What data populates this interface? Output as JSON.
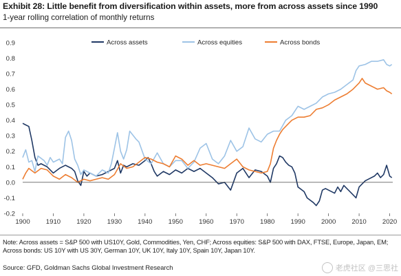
{
  "title": "Exhibit 28: Little benefit from diversification within assets, more from across assets since 1990",
  "subtitle": "1-year rolling correlation of monthly returns",
  "note": "Note: Across assets = S&P 500 with US10Y, Gold, Commodities, Yen, CHF; Across equities: S&P 500 with DAX, FTSE, Europe, Japan, EM; Across bonds: US 10Y with US 30Y, German 10Y, UK 10Y, Italy 10Y, Spain 10Y, Japan 10Y.",
  "source": "Source: GFD, Goldman Sachs Global Investment Research",
  "watermark": {
    "icon": "tiger-logo-icon",
    "text": "老虎社区 @三思社"
  },
  "chart_data": {
    "type": "line",
    "title": "",
    "xlabel": "",
    "ylabel": "",
    "xlim": [
      1900,
      2021
    ],
    "ylim": [
      -0.2,
      0.9
    ],
    "xticks": [
      1900,
      1910,
      1920,
      1930,
      1940,
      1950,
      1960,
      1970,
      1980,
      1990,
      2000,
      2010,
      2020
    ],
    "yticks": [
      -0.2,
      -0.1,
      0.0,
      0.1,
      0.2,
      0.3,
      0.4,
      0.5,
      0.6,
      0.7,
      0.8,
      0.9
    ],
    "ytick_labels": [
      "-0.2",
      "-0.1",
      "0.0",
      "0.1",
      "0.2",
      "0.3",
      "0.4",
      "0.5",
      "0.6",
      "0.7",
      "0.8",
      "0.9"
    ],
    "grid": false,
    "legend_position": "top",
    "series": [
      {
        "name": "Across assets",
        "color": "#1f3864",
        "x": [
          1900,
          1901,
          1902,
          1903,
          1904,
          1905,
          1906,
          1908,
          1910,
          1912,
          1914,
          1916,
          1917,
          1918,
          1919,
          1920,
          1921,
          1922,
          1924,
          1926,
          1928,
          1930,
          1931,
          1932,
          1933,
          1934,
          1936,
          1938,
          1940,
          1941,
          1942,
          1943,
          1944,
          1946,
          1948,
          1950,
          1952,
          1954,
          1956,
          1958,
          1960,
          1962,
          1964,
          1966,
          1968,
          1970,
          1972,
          1974,
          1976,
          1978,
          1980,
          1981,
          1982,
          1983,
          1984,
          1985,
          1986,
          1987,
          1988,
          1989,
          1990,
          1992,
          1993,
          1995,
          1996,
          1997,
          1998,
          1999,
          2000,
          2002,
          2003,
          2004,
          2005,
          2006,
          2008,
          2009,
          2010,
          2011,
          2012,
          2013,
          2015,
          2016,
          2017,
          2018,
          2019,
          2020,
          2020.7
        ],
        "y": [
          0.38,
          0.37,
          0.36,
          0.27,
          0.16,
          0.11,
          0.12,
          0.1,
          0.06,
          0.09,
          0.11,
          0.09,
          0.07,
          0.01,
          -0.02,
          0.07,
          0.04,
          0.06,
          0.04,
          0.05,
          0.07,
          0.09,
          0.14,
          0.06,
          0.11,
          0.1,
          0.12,
          0.11,
          0.14,
          0.16,
          0.12,
          0.07,
          0.04,
          0.07,
          0.05,
          0.08,
          0.06,
          0.09,
          0.07,
          0.09,
          0.06,
          0.03,
          -0.01,
          0.0,
          -0.05,
          0.06,
          0.09,
          0.03,
          0.08,
          0.07,
          0.04,
          0.0,
          0.09,
          0.12,
          0.17,
          0.16,
          0.13,
          0.11,
          0.1,
          0.06,
          -0.03,
          -0.06,
          -0.1,
          -0.13,
          -0.15,
          -0.12,
          -0.05,
          -0.04,
          -0.05,
          -0.07,
          -0.03,
          -0.06,
          -0.02,
          -0.04,
          -0.08,
          -0.1,
          -0.03,
          -0.01,
          0.01,
          0.02,
          0.04,
          0.06,
          0.03,
          0.05,
          0.11,
          0.04,
          0.03
        ]
      },
      {
        "name": "Across equities",
        "color": "#9dc3e6",
        "x": [
          1900,
          1901,
          1902,
          1903,
          1904,
          1905,
          1907,
          1908,
          1909,
          1910,
          1912,
          1913,
          1914,
          1915,
          1916,
          1917,
          1918,
          1919,
          1920,
          1922,
          1924,
          1926,
          1928,
          1929,
          1930,
          1931,
          1932,
          1933,
          1934,
          1935,
          1937,
          1938,
          1940,
          1942,
          1944,
          1946,
          1948,
          1950,
          1952,
          1954,
          1956,
          1958,
          1960,
          1962,
          1964,
          1966,
          1968,
          1970,
          1972,
          1974,
          1976,
          1978,
          1980,
          1982,
          1984,
          1986,
          1988,
          1990,
          1992,
          1994,
          1996,
          1998,
          2000,
          2002,
          2004,
          2006,
          2008,
          2009,
          2010,
          2012,
          2014,
          2016,
          2018,
          2019,
          2020,
          2020.7
        ],
        "y": [
          0.16,
          0.21,
          0.13,
          0.14,
          0.07,
          0.17,
          0.14,
          0.11,
          0.16,
          0.13,
          0.15,
          0.12,
          0.29,
          0.33,
          0.27,
          0.15,
          0.11,
          0.05,
          0.08,
          0.06,
          0.04,
          0.08,
          0.06,
          0.12,
          0.22,
          0.32,
          0.2,
          0.15,
          0.21,
          0.33,
          0.28,
          0.26,
          0.15,
          0.12,
          0.19,
          0.12,
          0.1,
          0.14,
          0.14,
          0.09,
          0.13,
          0.22,
          0.25,
          0.15,
          0.12,
          0.17,
          0.27,
          0.2,
          0.23,
          0.35,
          0.28,
          0.26,
          0.31,
          0.33,
          0.33,
          0.4,
          0.43,
          0.49,
          0.47,
          0.49,
          0.51,
          0.55,
          0.57,
          0.58,
          0.6,
          0.63,
          0.66,
          0.72,
          0.75,
          0.76,
          0.78,
          0.78,
          0.79,
          0.76,
          0.75,
          0.76
        ]
      },
      {
        "name": "Across bonds",
        "color": "#ed7d31",
        "x": [
          1900,
          1901,
          1902,
          1904,
          1906,
          1908,
          1910,
          1912,
          1914,
          1916,
          1918,
          1920,
          1922,
          1924,
          1926,
          1928,
          1930,
          1932,
          1934,
          1936,
          1938,
          1940,
          1942,
          1944,
          1946,
          1948,
          1950,
          1952,
          1954,
          1956,
          1958,
          1960,
          1962,
          1964,
          1966,
          1968,
          1970,
          1972,
          1974,
          1976,
          1978,
          1980,
          1981,
          1982,
          1983,
          1984,
          1985,
          1987,
          1988,
          1990,
          1992,
          1994,
          1996,
          1998,
          2000,
          2002,
          2004,
          2006,
          2008,
          2010,
          2011,
          2012,
          2014,
          2016,
          2018,
          2019,
          2020,
          2020.7
        ],
        "y": [
          0.02,
          0.06,
          0.09,
          0.06,
          0.09,
          0.08,
          0.04,
          0.02,
          0.05,
          0.03,
          0.0,
          0.02,
          0.01,
          0.02,
          0.03,
          0.02,
          0.05,
          0.12,
          0.09,
          0.1,
          0.13,
          0.16,
          0.15,
          0.13,
          0.12,
          0.1,
          0.17,
          0.15,
          0.11,
          0.14,
          0.11,
          0.12,
          0.11,
          0.1,
          0.09,
          0.12,
          0.15,
          0.1,
          0.08,
          0.07,
          0.06,
          0.07,
          0.12,
          0.22,
          0.27,
          0.31,
          0.34,
          0.38,
          0.4,
          0.42,
          0.42,
          0.43,
          0.47,
          0.48,
          0.5,
          0.53,
          0.55,
          0.57,
          0.6,
          0.64,
          0.67,
          0.64,
          0.62,
          0.6,
          0.61,
          0.59,
          0.58,
          0.57
        ]
      }
    ]
  }
}
